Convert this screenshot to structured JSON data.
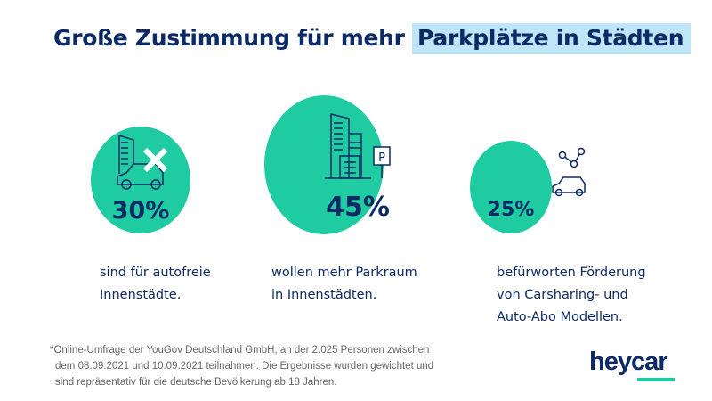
{
  "title": {
    "prefix": "Große Zustimmung für mehr ",
    "highlight": "Parkplätze in Städten"
  },
  "colors": {
    "accent": "#1fcba0",
    "navy": "#0b2a66",
    "highlight": "#bfe6f6"
  },
  "stats": [
    {
      "value": "30%",
      "percent": 30,
      "icon": "building-crossed-car-icon",
      "line1": "sind für autofreie",
      "line2": "Innenstädte.",
      "line3": ""
    },
    {
      "value": "45%",
      "percent": 45,
      "icon": "buildings-parking-sign-icon",
      "line1": "wollen mehr Parkraum",
      "line2": "in Innenstädten.",
      "line3": ""
    },
    {
      "value": "25%",
      "percent": 25,
      "icon": "shared-car-network-icon",
      "line1": "befürworten Förderung",
      "line2": "von Carsharing- und",
      "line3": "Auto-Abo Modellen."
    }
  ],
  "footnote": {
    "line1": "*Online-Umfrage der YouGov Deutschland GmbH, an der 2.025 Personen zwischen",
    "line2": "dem 08.09.2021 und 10.09.2021 teilnahmen. Die Ergebnisse wurden gewichtet und",
    "line3": "sind repräsentativ für die deutsche Bevölkerung ab 18 Jahren."
  },
  "logo": "heycar"
}
